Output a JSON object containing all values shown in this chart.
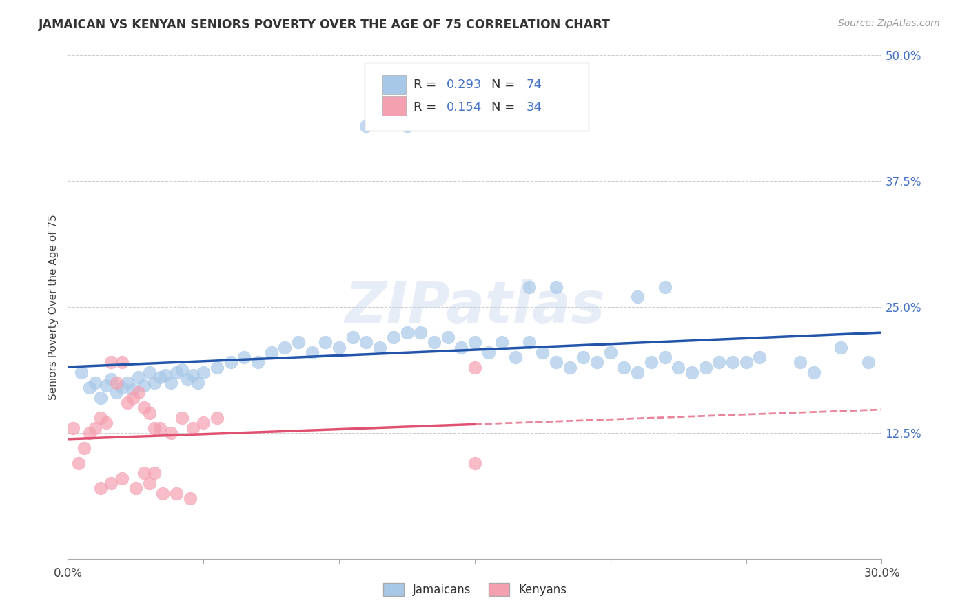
{
  "title": "JAMAICAN VS KENYAN SENIORS POVERTY OVER THE AGE OF 75 CORRELATION CHART",
  "source": "Source: ZipAtlas.com",
  "ylabel": "Seniors Poverty Over the Age of 75",
  "xlim": [
    0.0,
    0.3
  ],
  "ylim": [
    0.0,
    0.5
  ],
  "xticks": [
    0.0,
    0.05,
    0.1,
    0.15,
    0.2,
    0.25,
    0.3
  ],
  "xticklabels": [
    "0.0%",
    "",
    "",
    "",
    "",
    "",
    "30.0%"
  ],
  "yticks": [
    0.0,
    0.125,
    0.25,
    0.375,
    0.5
  ],
  "yticklabels": [
    "",
    "12.5%",
    "25.0%",
    "37.5%",
    "50.0%"
  ],
  "r_jamaican": 0.293,
  "n_jamaican": 74,
  "r_kenyan": 0.154,
  "n_kenyan": 34,
  "color_jamaican": "#a8c8e8",
  "color_kenyan": "#f4a0b0",
  "line_color_jamaican": "#2255aa",
  "line_color_kenyan": "#e05070",
  "watermark": "ZIPatlas",
  "legend_labels": [
    "Jamaicans",
    "Kenyans"
  ],
  "jamaican_x": [
    0.005,
    0.008,
    0.01,
    0.012,
    0.014,
    0.016,
    0.018,
    0.02,
    0.022,
    0.024,
    0.026,
    0.028,
    0.03,
    0.032,
    0.034,
    0.036,
    0.038,
    0.04,
    0.042,
    0.044,
    0.046,
    0.048,
    0.05,
    0.055,
    0.06,
    0.065,
    0.07,
    0.075,
    0.08,
    0.085,
    0.09,
    0.095,
    0.1,
    0.105,
    0.11,
    0.115,
    0.12,
    0.125,
    0.13,
    0.135,
    0.14,
    0.145,
    0.15,
    0.155,
    0.16,
    0.165,
    0.17,
    0.175,
    0.18,
    0.185,
    0.19,
    0.195,
    0.2,
    0.205,
    0.21,
    0.215,
    0.22,
    0.225,
    0.23,
    0.235,
    0.24,
    0.245,
    0.25,
    0.255,
    0.17,
    0.18,
    0.21,
    0.22,
    0.11,
    0.125,
    0.27,
    0.275,
    0.285,
    0.295
  ],
  "jamaican_y": [
    0.185,
    0.17,
    0.175,
    0.16,
    0.172,
    0.178,
    0.165,
    0.17,
    0.175,
    0.168,
    0.18,
    0.172,
    0.185,
    0.175,
    0.18,
    0.182,
    0.175,
    0.185,
    0.188,
    0.178,
    0.182,
    0.175,
    0.185,
    0.19,
    0.195,
    0.2,
    0.195,
    0.205,
    0.21,
    0.215,
    0.205,
    0.215,
    0.21,
    0.22,
    0.215,
    0.21,
    0.22,
    0.225,
    0.225,
    0.215,
    0.22,
    0.21,
    0.215,
    0.205,
    0.215,
    0.2,
    0.215,
    0.205,
    0.195,
    0.19,
    0.2,
    0.195,
    0.205,
    0.19,
    0.185,
    0.195,
    0.2,
    0.19,
    0.185,
    0.19,
    0.195,
    0.195,
    0.195,
    0.2,
    0.27,
    0.27,
    0.26,
    0.27,
    0.43,
    0.43,
    0.195,
    0.185,
    0.21,
    0.195
  ],
  "kenyan_x": [
    0.002,
    0.004,
    0.006,
    0.008,
    0.01,
    0.012,
    0.014,
    0.016,
    0.018,
    0.02,
    0.022,
    0.024,
    0.026,
    0.028,
    0.03,
    0.032,
    0.034,
    0.038,
    0.042,
    0.046,
    0.05,
    0.055,
    0.035,
    0.025,
    0.03,
    0.04,
    0.045,
    0.028,
    0.032,
    0.02,
    0.016,
    0.012,
    0.15,
    0.15
  ],
  "kenyan_y": [
    0.13,
    0.095,
    0.11,
    0.125,
    0.13,
    0.14,
    0.135,
    0.195,
    0.175,
    0.195,
    0.155,
    0.16,
    0.165,
    0.15,
    0.145,
    0.13,
    0.13,
    0.125,
    0.14,
    0.13,
    0.135,
    0.14,
    0.065,
    0.07,
    0.075,
    0.065,
    0.06,
    0.085,
    0.085,
    0.08,
    0.075,
    0.07,
    0.19,
    0.095
  ]
}
